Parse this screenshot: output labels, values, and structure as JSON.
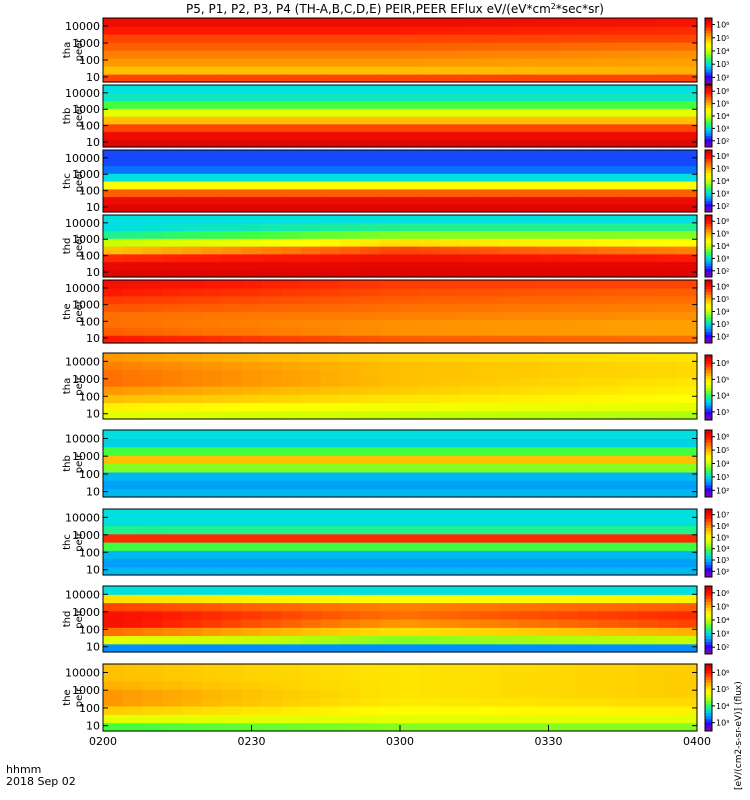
{
  "title_plain": "P5, P1, P2, P3, P4 (TH-A,B,C,D,E) PEIR,PEER EFlux eV/(eV*cm",
  "title_sup": "2",
  "title_tail": "*sec*sr)",
  "colorbar_unit_label": "[eV/(cm2-s-sr-eV)] (flux)",
  "colors": {
    "background": "#ffffff",
    "colormap": [
      "#7f00b4",
      "#2a00ff",
      "#0090ff",
      "#00e0e0",
      "#40ff40",
      "#c8ff00",
      "#ffff00",
      "#ffc000",
      "#ff7000",
      "#ff1800",
      "#d80000"
    ]
  },
  "chart_data": {
    "type": "heatmap",
    "title": "P5, P1, P2, P3, P4 (TH-A,B,C,D,E) PEIR,PEER EFlux eV/(eV*cm2*sec*sr)",
    "x_axis": {
      "ticks": [
        "0200",
        "0230",
        "0300",
        "0330",
        "0400"
      ],
      "tick_minutes": [
        0,
        30,
        60,
        90,
        120
      ],
      "range_minutes": [
        0,
        120
      ],
      "label_line1": "hhmm",
      "label_line2": "2018 Sep 02"
    },
    "y_axis": {
      "scale": "log",
      "range_eV": [
        5,
        30000
      ],
      "ticks": [
        "10",
        "100",
        "1000",
        "10000"
      ]
    },
    "panels": [
      {
        "probe": "tha",
        "species": "peer",
        "label1": "tha",
        "label2": "peer",
        "cbar_ticks": [
          "10²",
          "10³",
          "10⁴",
          "10⁵",
          "10⁶"
        ],
        "profile": [
          [
            0.85,
            0.7,
            0.75,
            0.78,
            0.82,
            0.85,
            0.9,
            0.95
          ],
          [
            0.85,
            0.7,
            0.75,
            0.78,
            0.82,
            0.85,
            0.9,
            0.95
          ],
          [
            0.85,
            0.72,
            0.74,
            0.76,
            0.8,
            0.85,
            0.88,
            0.92
          ]
        ]
      },
      {
        "probe": "thb",
        "species": "peer",
        "label1": "thb",
        "label2": "peer",
        "cbar_ticks": [
          "10²",
          "10³",
          "10⁴",
          "10⁵",
          "10⁶"
        ],
        "profile": [
          [
            0.98,
            0.95,
            0.85,
            0.7,
            0.55,
            0.4,
            0.32,
            0.3
          ],
          [
            0.98,
            0.95,
            0.85,
            0.7,
            0.55,
            0.4,
            0.32,
            0.3
          ],
          [
            0.98,
            0.95,
            0.85,
            0.7,
            0.55,
            0.4,
            0.32,
            0.3
          ]
        ]
      },
      {
        "probe": "thc",
        "species": "peer",
        "label1": "thc",
        "label2": "peer",
        "cbar_ticks": [
          "10²",
          "10³",
          "10⁴",
          "10⁵",
          "10⁶"
        ],
        "profile": [
          [
            0.98,
            0.95,
            0.82,
            0.6,
            0.3,
            0.18,
            0.15,
            0.15
          ],
          [
            0.98,
            0.95,
            0.82,
            0.6,
            0.3,
            0.18,
            0.15,
            0.15
          ],
          [
            0.98,
            0.95,
            0.82,
            0.6,
            0.3,
            0.18,
            0.15,
            0.15
          ]
        ]
      },
      {
        "probe": "thd",
        "species": "peer",
        "label1": "thd",
        "label2": "peer",
        "cbar_ticks": [
          "10²",
          "10³",
          "10⁴",
          "10⁵",
          "10⁶"
        ],
        "profile": [
          [
            0.98,
            0.96,
            0.88,
            0.7,
            0.5,
            0.35,
            0.3,
            0.3
          ],
          [
            0.98,
            0.97,
            0.93,
            0.85,
            0.65,
            0.45,
            0.35,
            0.3
          ],
          [
            0.98,
            0.97,
            0.9,
            0.78,
            0.6,
            0.45,
            0.35,
            0.3
          ]
        ]
      },
      {
        "probe": "the",
        "species": "peer",
        "label1": "the",
        "label2": "peer",
        "cbar_ticks": [
          "10²",
          "10³",
          "10⁴",
          "10⁵",
          "10⁶"
        ],
        "profile": [
          [
            0.9,
            0.82,
            0.8,
            0.8,
            0.83,
            0.86,
            0.9,
            0.93
          ],
          [
            0.82,
            0.76,
            0.76,
            0.78,
            0.8,
            0.82,
            0.84,
            0.86
          ],
          [
            0.8,
            0.74,
            0.74,
            0.76,
            0.78,
            0.8,
            0.82,
            0.85
          ]
        ]
      },
      {
        "probe": "tha",
        "species": "peir",
        "label1": "tha",
        "label2": "peir",
        "cbar_ticks": [
          "10³",
          "10⁴",
          "10⁵",
          "10⁶"
        ],
        "profile": [
          [
            0.55,
            0.62,
            0.7,
            0.75,
            0.8,
            0.8,
            0.78,
            0.75
          ],
          [
            0.5,
            0.58,
            0.64,
            0.68,
            0.7,
            0.7,
            0.7,
            0.68
          ],
          [
            0.48,
            0.55,
            0.6,
            0.62,
            0.64,
            0.66,
            0.66,
            0.64
          ]
        ]
      },
      {
        "probe": "thb",
        "species": "peir",
        "label1": "thb",
        "label2": "peir",
        "cbar_ticks": [
          "10²",
          "10³",
          "10⁴",
          "10⁵",
          "10⁶"
        ],
        "profile": [
          [
            0.25,
            0.22,
            0.25,
            0.45,
            0.7,
            0.4,
            0.28,
            0.3
          ],
          [
            0.25,
            0.22,
            0.25,
            0.45,
            0.7,
            0.4,
            0.28,
            0.3
          ],
          [
            0.25,
            0.22,
            0.25,
            0.45,
            0.7,
            0.4,
            0.28,
            0.3
          ]
        ]
      },
      {
        "probe": "thc",
        "species": "peir",
        "label1": "thc",
        "label2": "peir",
        "cbar_ticks": [
          "10²",
          "10³",
          "10⁴",
          "10⁵",
          "10⁶",
          "10⁷"
        ],
        "profile": [
          [
            0.25,
            0.22,
            0.25,
            0.4,
            0.88,
            0.35,
            0.3,
            0.3
          ],
          [
            0.25,
            0.22,
            0.25,
            0.4,
            0.88,
            0.35,
            0.3,
            0.3
          ],
          [
            0.25,
            0.22,
            0.25,
            0.4,
            0.88,
            0.35,
            0.3,
            0.3
          ]
        ]
      },
      {
        "probe": "thd",
        "species": "peir",
        "label1": "thd",
        "label2": "peir",
        "cbar_ticks": [
          "10²",
          "10³",
          "10⁴",
          "10⁵",
          "10⁶"
        ],
        "profile": [
          [
            0.2,
            0.55,
            0.8,
            0.92,
            0.92,
            0.85,
            0.65,
            0.3
          ],
          [
            0.2,
            0.45,
            0.65,
            0.75,
            0.8,
            0.78,
            0.6,
            0.3
          ],
          [
            0.2,
            0.5,
            0.72,
            0.85,
            0.88,
            0.82,
            0.62,
            0.3
          ]
        ]
      },
      {
        "probe": "the",
        "species": "peir",
        "label1": "the",
        "label2": "peir",
        "cbar_ticks": [
          "10³",
          "10⁴",
          "10⁵",
          "10⁶"
        ],
        "profile": [
          [
            0.4,
            0.55,
            0.68,
            0.75,
            0.75,
            0.72,
            0.7,
            0.7
          ],
          [
            0.45,
            0.55,
            0.6,
            0.63,
            0.64,
            0.64,
            0.64,
            0.64
          ],
          [
            0.45,
            0.55,
            0.62,
            0.66,
            0.68,
            0.68,
            0.68,
            0.68
          ]
        ]
      }
    ]
  }
}
